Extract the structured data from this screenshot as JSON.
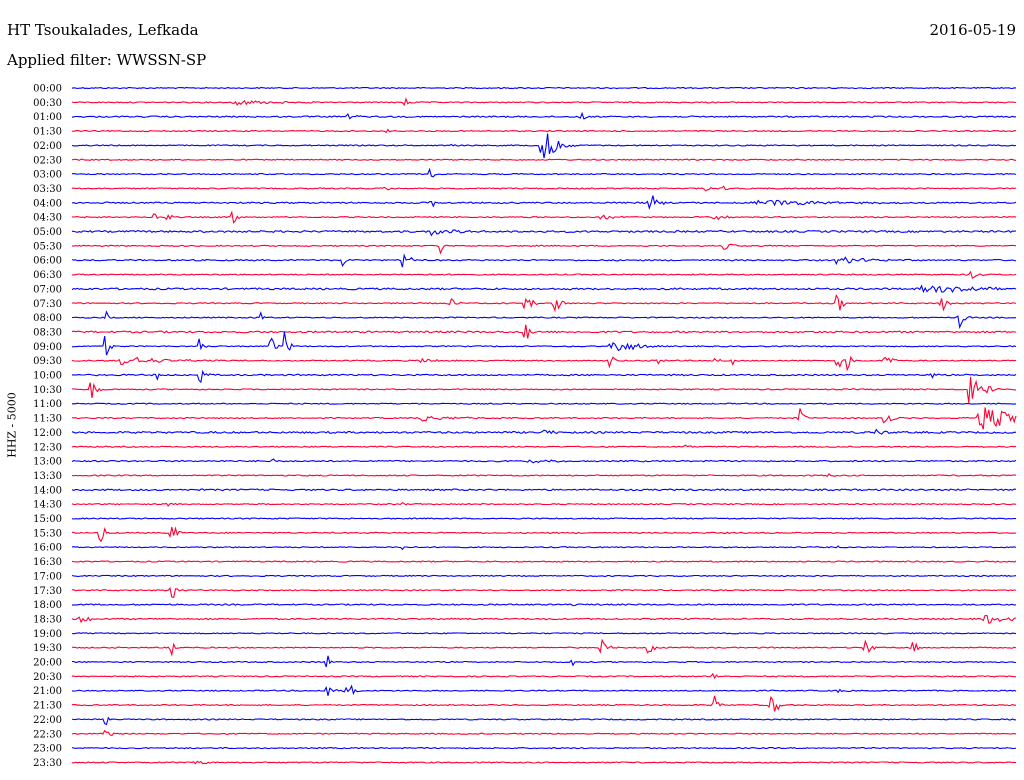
{
  "header": {
    "station": "HT Tsoukalades, Lefkada",
    "date": "2016-05-19",
    "filter": "Applied filter: WWSSN-SP"
  },
  "chart_data": {
    "type": "line",
    "title": "HT Tsoukalades, Lefkada",
    "ylabel": "HHZ - 5000",
    "colors": {
      "blue": "#0000ff",
      "red": "#ff0033"
    },
    "rows": [
      {
        "label": "00:00",
        "color": "blue",
        "noise": 1.0,
        "events": []
      },
      {
        "label": "00:30",
        "color": "red",
        "noise": 1.0,
        "events": [
          {
            "t": 0.17,
            "a": 3,
            "d": 0.035
          },
          {
            "t": 0.35,
            "a": 7,
            "d": 0.005
          }
        ]
      },
      {
        "label": "01:00",
        "color": "blue",
        "noise": 1.2,
        "events": [
          {
            "t": 0.29,
            "a": 3,
            "d": 0.01
          },
          {
            "t": 0.54,
            "a": 7,
            "d": 0.003
          }
        ]
      },
      {
        "label": "01:30",
        "color": "red",
        "noise": 1.0,
        "events": [
          {
            "t": 0.33,
            "a": 3,
            "d": 0.005
          }
        ]
      },
      {
        "label": "02:00",
        "color": "blue",
        "noise": 1.0,
        "events": [
          {
            "t": 0.4,
            "a": 3,
            "d": 0.005
          },
          {
            "t": 0.497,
            "a": 22,
            "d": 0.012
          }
        ]
      },
      {
        "label": "02:30",
        "color": "red",
        "noise": 1.0,
        "events": []
      },
      {
        "label": "03:00",
        "color": "blue",
        "noise": 1.0,
        "events": [
          {
            "t": 0.38,
            "a": 14,
            "d": 0.002
          }
        ]
      },
      {
        "label": "03:30",
        "color": "red",
        "noise": 1.0,
        "events": [
          {
            "t": 0.33,
            "a": 3,
            "d": 0.006
          },
          {
            "t": 0.67,
            "a": 3,
            "d": 0.005
          },
          {
            "t": 0.69,
            "a": 3,
            "d": 0.005
          }
        ]
      },
      {
        "label": "04:00",
        "color": "blue",
        "noise": 1.3,
        "events": [
          {
            "t": 0.38,
            "a": 14,
            "d": 0.002
          },
          {
            "t": 0.61,
            "a": 16,
            "d": 0.006
          },
          {
            "t": 0.72,
            "a": 4,
            "d": 0.06
          }
        ]
      },
      {
        "label": "04:30",
        "color": "red",
        "noise": 1.0,
        "events": [
          {
            "t": 0.085,
            "a": 10,
            "d": 0.004
          },
          {
            "t": 0.1,
            "a": 9,
            "d": 0.003
          },
          {
            "t": 0.17,
            "a": 14,
            "d": 0.004
          },
          {
            "t": 0.56,
            "a": 3,
            "d": 0.01
          },
          {
            "t": 0.68,
            "a": 5,
            "d": 0.01
          }
        ]
      },
      {
        "label": "05:00",
        "color": "blue",
        "noise": 1.6,
        "events": [
          {
            "t": 0.17,
            "a": 14,
            "d": 0.002
          },
          {
            "t": 0.38,
            "a": 4,
            "d": 0.02
          }
        ]
      },
      {
        "label": "05:30",
        "color": "red",
        "noise": 1.0,
        "events": [
          {
            "t": 0.39,
            "a": 14,
            "d": 0.002
          },
          {
            "t": 0.69,
            "a": 4,
            "d": 0.01
          }
        ]
      },
      {
        "label": "06:00",
        "color": "blue",
        "noise": 1.2,
        "events": [
          {
            "t": 0.285,
            "a": 9,
            "d": 0.004
          },
          {
            "t": 0.35,
            "a": 14,
            "d": 0.005
          },
          {
            "t": 0.81,
            "a": 4,
            "d": 0.03
          }
        ]
      },
      {
        "label": "06:30",
        "color": "red",
        "noise": 1.0,
        "events": [
          {
            "t": 0.95,
            "a": 8,
            "d": 0.006
          }
        ]
      },
      {
        "label": "07:00",
        "color": "blue",
        "noise": 1.6,
        "events": [
          {
            "t": 0.9,
            "a": 5,
            "d": 0.04
          }
        ]
      },
      {
        "label": "07:30",
        "color": "red",
        "noise": 1.0,
        "events": [
          {
            "t": 0.4,
            "a": 14,
            "d": 0.005
          },
          {
            "t": 0.48,
            "a": 15,
            "d": 0.005
          },
          {
            "t": 0.51,
            "a": 15,
            "d": 0.005
          },
          {
            "t": 0.81,
            "a": 16,
            "d": 0.004
          },
          {
            "t": 0.92,
            "a": 14,
            "d": 0.004
          }
        ]
      },
      {
        "label": "08:00",
        "color": "blue",
        "noise": 1.0,
        "events": [
          {
            "t": 0.035,
            "a": 14,
            "d": 0.002
          },
          {
            "t": 0.2,
            "a": 5,
            "d": 0.003
          },
          {
            "t": 0.94,
            "a": 14,
            "d": 0.004
          }
        ]
      },
      {
        "label": "08:30",
        "color": "red",
        "noise": 1.6,
        "events": [
          {
            "t": 0.48,
            "a": 14,
            "d": 0.005
          }
        ]
      },
      {
        "label": "09:00",
        "color": "blue",
        "noise": 1.0,
        "events": [
          {
            "t": 0.035,
            "a": 14,
            "d": 0.004
          },
          {
            "t": 0.135,
            "a": 9,
            "d": 0.003
          },
          {
            "t": 0.21,
            "a": 14,
            "d": 0.004
          },
          {
            "t": 0.225,
            "a": 16,
            "d": 0.004
          },
          {
            "t": 0.57,
            "a": 9,
            "d": 0.02
          }
        ]
      },
      {
        "label": "09:30",
        "color": "red",
        "noise": 1.0,
        "events": [
          {
            "t": 0.05,
            "a": 5,
            "d": 0.04
          },
          {
            "t": 0.37,
            "a": 3,
            "d": 0.015
          },
          {
            "t": 0.57,
            "a": 10,
            "d": 0.004
          },
          {
            "t": 0.62,
            "a": 5,
            "d": 0.004
          },
          {
            "t": 0.68,
            "a": 5,
            "d": 0.004
          },
          {
            "t": 0.7,
            "a": 5,
            "d": 0.004
          },
          {
            "t": 0.81,
            "a": 16,
            "d": 0.004
          },
          {
            "t": 0.82,
            "a": 14,
            "d": 0.004
          },
          {
            "t": 0.86,
            "a": 14,
            "d": 0.005
          }
        ]
      },
      {
        "label": "10:00",
        "color": "blue",
        "noise": 1.3,
        "events": [
          {
            "t": 0.09,
            "a": 6,
            "d": 0.003
          },
          {
            "t": 0.135,
            "a": 12,
            "d": 0.004
          },
          {
            "t": 0.91,
            "a": 6,
            "d": 0.003
          }
        ]
      },
      {
        "label": "10:30",
        "color": "red",
        "noise": 1.0,
        "events": [
          {
            "t": 0.02,
            "a": 16,
            "d": 0.004
          },
          {
            "t": 0.95,
            "a": 16,
            "d": 0.012
          }
        ]
      },
      {
        "label": "11:00",
        "color": "blue",
        "noise": 1.0,
        "events": []
      },
      {
        "label": "11:30",
        "color": "red",
        "noise": 1.0,
        "events": [
          {
            "t": 0.37,
            "a": 3,
            "d": 0.03
          },
          {
            "t": 0.77,
            "a": 14,
            "d": 0.004
          },
          {
            "t": 0.86,
            "a": 12,
            "d": 0.006
          },
          {
            "t": 0.96,
            "a": 16,
            "d": 0.03
          }
        ]
      },
      {
        "label": "12:00",
        "color": "blue",
        "noise": 1.6,
        "events": [
          {
            "t": 0.5,
            "a": 3,
            "d": 0.01
          },
          {
            "t": 0.85,
            "a": 6,
            "d": 0.006
          }
        ]
      },
      {
        "label": "12:30",
        "color": "red",
        "noise": 1.0,
        "events": [
          {
            "t": 0.65,
            "a": 3,
            "d": 0.003
          }
        ]
      },
      {
        "label": "13:00",
        "color": "blue",
        "noise": 1.2,
        "events": [
          {
            "t": 0.21,
            "a": 6,
            "d": 0.003
          },
          {
            "t": 0.48,
            "a": 3,
            "d": 0.02
          }
        ]
      },
      {
        "label": "13:30",
        "color": "red",
        "noise": 1.0,
        "events": [
          {
            "t": 0.8,
            "a": 3,
            "d": 0.005
          }
        ]
      },
      {
        "label": "14:00",
        "color": "blue",
        "noise": 1.4,
        "events": []
      },
      {
        "label": "14:30",
        "color": "red",
        "noise": 1.0,
        "events": [
          {
            "t": 0.1,
            "a": 4,
            "d": 0.004
          },
          {
            "t": 0.35,
            "a": 3,
            "d": 0.003
          }
        ]
      },
      {
        "label": "15:00",
        "color": "blue",
        "noise": 1.0,
        "events": []
      },
      {
        "label": "15:30",
        "color": "red",
        "noise": 1.0,
        "events": [
          {
            "t": 0.03,
            "a": 14,
            "d": 0.004
          },
          {
            "t": 0.105,
            "a": 14,
            "d": 0.004
          }
        ]
      },
      {
        "label": "16:00",
        "color": "blue",
        "noise": 1.0,
        "events": [
          {
            "t": 0.35,
            "a": 4,
            "d": 0.002
          },
          {
            "t": 0.56,
            "a": 3,
            "d": 0.002
          },
          {
            "t": 0.81,
            "a": 4,
            "d": 0.002
          }
        ]
      },
      {
        "label": "16:30",
        "color": "red",
        "noise": 1.0,
        "events": []
      },
      {
        "label": "17:00",
        "color": "blue",
        "noise": 1.0,
        "events": []
      },
      {
        "label": "17:30",
        "color": "red",
        "noise": 1.0,
        "events": [
          {
            "t": 0.105,
            "a": 14,
            "d": 0.004
          }
        ]
      },
      {
        "label": "18:00",
        "color": "blue",
        "noise": 1.2,
        "events": [
          {
            "t": 0.53,
            "a": 3,
            "d": 0.003
          }
        ]
      },
      {
        "label": "18:30",
        "color": "red",
        "noise": 1.2,
        "events": [
          {
            "t": 0.008,
            "a": 9,
            "d": 0.006
          },
          {
            "t": 0.965,
            "a": 6,
            "d": 0.02
          }
        ]
      },
      {
        "label": "19:00",
        "color": "blue",
        "noise": 1.0,
        "events": []
      },
      {
        "label": "19:30",
        "color": "red",
        "noise": 1.0,
        "events": [
          {
            "t": 0.105,
            "a": 14,
            "d": 0.003
          },
          {
            "t": 0.56,
            "a": 10,
            "d": 0.005
          },
          {
            "t": 0.61,
            "a": 11,
            "d": 0.005
          },
          {
            "t": 0.84,
            "a": 13,
            "d": 0.005
          },
          {
            "t": 0.89,
            "a": 10,
            "d": 0.004
          }
        ]
      },
      {
        "label": "20:00",
        "color": "blue",
        "noise": 1.0,
        "events": [
          {
            "t": 0.27,
            "a": 14,
            "d": 0.002
          },
          {
            "t": 0.53,
            "a": 6,
            "d": 0.004
          }
        ]
      },
      {
        "label": "20:30",
        "color": "red",
        "noise": 1.0,
        "events": [
          {
            "t": 0.68,
            "a": 12,
            "d": 0.002
          }
        ]
      },
      {
        "label": "21:00",
        "color": "blue",
        "noise": 1.0,
        "events": [
          {
            "t": 0.27,
            "a": 14,
            "d": 0.004
          },
          {
            "t": 0.29,
            "a": 10,
            "d": 0.004
          },
          {
            "t": 0.293,
            "a": 12,
            "d": 0.004
          },
          {
            "t": 0.81,
            "a": 3,
            "d": 0.005
          }
        ]
      },
      {
        "label": "21:30",
        "color": "red",
        "noise": 1.0,
        "events": [
          {
            "t": 0.68,
            "a": 12,
            "d": 0.004
          },
          {
            "t": 0.74,
            "a": 11,
            "d": 0.004
          },
          {
            "t": 0.745,
            "a": 9,
            "d": 0.004
          }
        ]
      },
      {
        "label": "22:00",
        "color": "blue",
        "noise": 1.0,
        "events": [
          {
            "t": 0.035,
            "a": 12,
            "d": 0.002
          }
        ]
      },
      {
        "label": "22:30",
        "color": "red",
        "noise": 1.0,
        "events": [
          {
            "t": 0.035,
            "a": 14,
            "d": 0.004
          }
        ]
      },
      {
        "label": "23:00",
        "color": "blue",
        "noise": 1.0,
        "events": []
      },
      {
        "label": "23:30",
        "color": "red",
        "noise": 1.0,
        "events": [
          {
            "t": 0.13,
            "a": 3,
            "d": 0.01
          }
        ]
      }
    ]
  }
}
